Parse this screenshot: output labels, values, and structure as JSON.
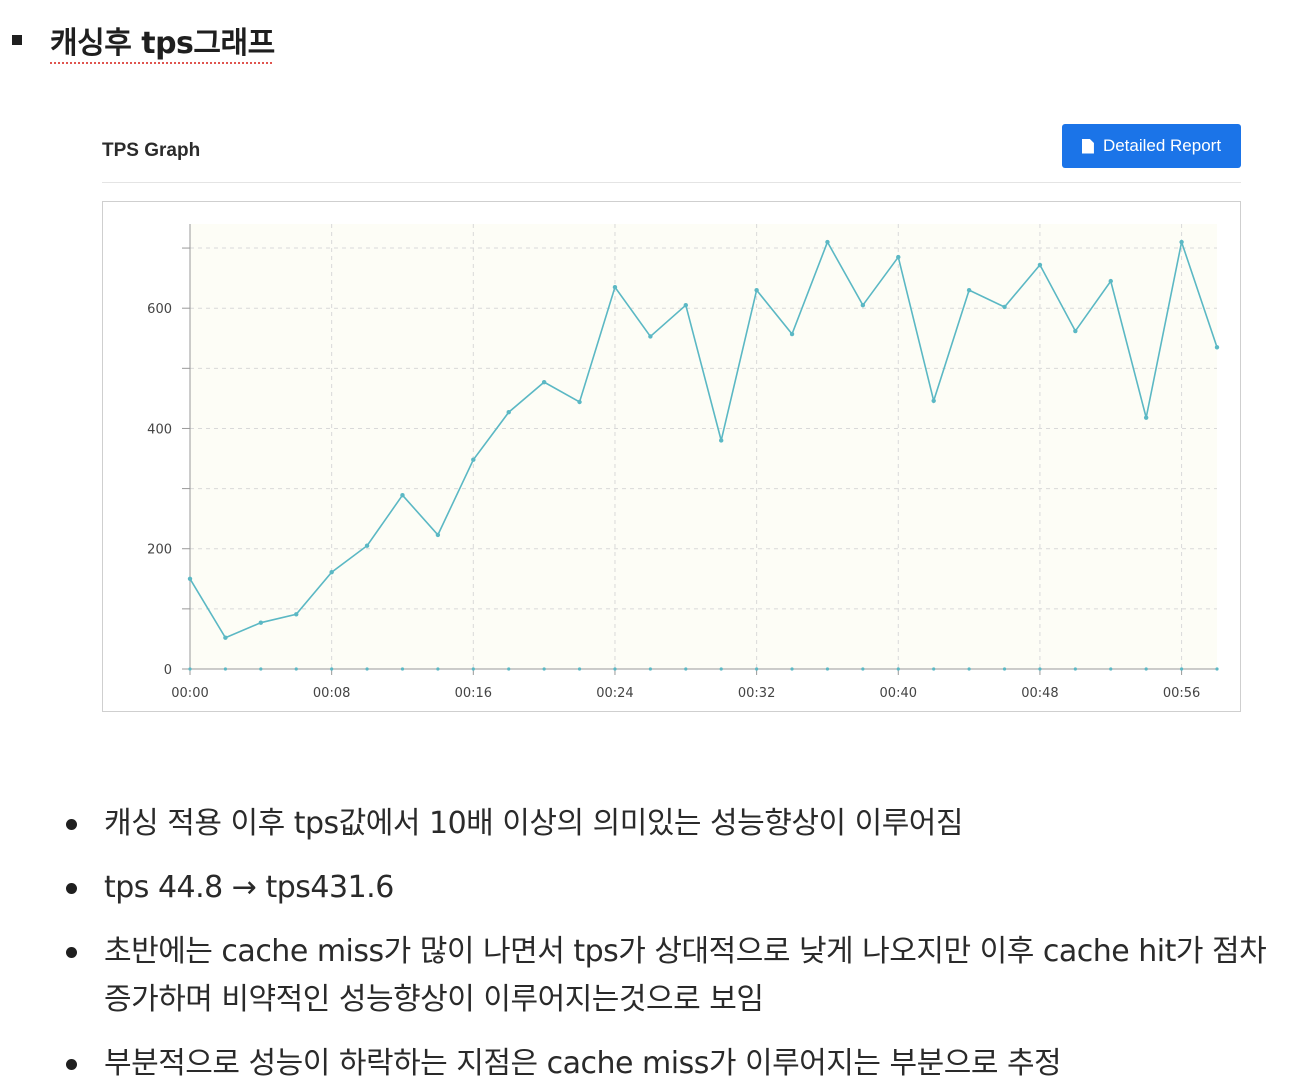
{
  "heading": "캐싱후 tps그래프",
  "card": {
    "title": "TPS Graph",
    "report_button": "Detailed Report",
    "report_icon": "document-icon"
  },
  "chart_data": {
    "type": "line",
    "title": "",
    "xlabel": "",
    "ylabel": "",
    "x": [
      "00:00",
      "00:02",
      "00:04",
      "00:06",
      "00:08",
      "00:10",
      "00:12",
      "00:14",
      "00:16",
      "00:18",
      "00:20",
      "00:22",
      "00:24",
      "00:26",
      "00:28",
      "00:30",
      "00:32",
      "00:34",
      "00:36",
      "00:38",
      "00:40",
      "00:42",
      "00:44",
      "00:46",
      "00:48",
      "00:50",
      "00:52",
      "00:54",
      "00:56",
      "00:58"
    ],
    "values": [
      150,
      52,
      77,
      91,
      161,
      205,
      289,
      223,
      348,
      427,
      477,
      444,
      635,
      553,
      605,
      380,
      630,
      557,
      710,
      605,
      685,
      446,
      630,
      602,
      672,
      562,
      645,
      418,
      710,
      535
    ],
    "baseline_values": [
      0,
      0,
      0,
      0,
      0,
      0,
      0,
      0,
      0,
      0,
      0,
      0,
      0,
      0,
      0,
      0,
      0,
      0,
      0,
      0,
      0,
      0,
      0,
      0,
      0,
      0,
      0,
      0,
      0,
      0
    ],
    "x_tick_labels": [
      "00:00",
      "00:08",
      "00:16",
      "00:24",
      "00:32",
      "00:40",
      "00:48",
      "00:56"
    ],
    "y_ticks": [
      0,
      200,
      400,
      600
    ],
    "ylim": [
      0,
      740
    ],
    "grid": true,
    "legend": "none",
    "colors": {
      "line": "#5bb8c4",
      "plot_bg": "#fdfdf6",
      "grid": "#d9d9d9"
    }
  },
  "notes": [
    "캐싱 적용 이후 tps값에서 10배 이상의 의미있는 성능향상이 이루어짐",
    "tps 44.8 → tps431.6",
    "초반에는 cache  miss가 많이 나면서 tps가 상대적으로 낮게 나오지만 이후 cache hit가 점차 증가하며 비약적인 성능향상이 이루어지는것으로 보임",
    "부분적으로 성능이 하락하는 지점은 cache miss가 이루어지는 부분으로 추정"
  ]
}
